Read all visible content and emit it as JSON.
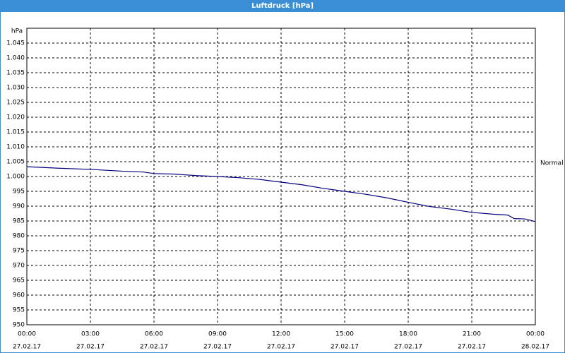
{
  "window_title": "Luftdruck [hPa]",
  "chart_data": {
    "type": "line",
    "y_unit_label": "hPa",
    "right_label": "Normal",
    "x": [
      0,
      1.5,
      3,
      4.5,
      5.5,
      6,
      7,
      8,
      9,
      10,
      11,
      12,
      13,
      14,
      15,
      16,
      17,
      18,
      19,
      20,
      21,
      22,
      22.7,
      23,
      23.5,
      24
    ],
    "series": [
      {
        "name": "Luftdruck",
        "color": "#00007f",
        "values": [
          1003.3,
          1002.8,
          1002.4,
          1001.8,
          1001.5,
          1001.0,
          1000.8,
          1000.3,
          1000.0,
          999.6,
          999.0,
          998.1,
          997.2,
          996.0,
          995.0,
          994.0,
          992.8,
          991.3,
          989.9,
          989.0,
          987.9,
          987.3,
          987.0,
          985.8,
          985.7,
          984.8
        ]
      }
    ],
    "xlim": [
      0,
      24
    ],
    "xticks": [
      {
        "value": 0,
        "label": "00:00"
      },
      {
        "value": 3,
        "label": "03:00"
      },
      {
        "value": 6,
        "label": "06:00"
      },
      {
        "value": 9,
        "label": "09:00"
      },
      {
        "value": 12,
        "label": "12:00"
      },
      {
        "value": 15,
        "label": "15:00"
      },
      {
        "value": 18,
        "label": "18:00"
      },
      {
        "value": 21,
        "label": "21:00"
      },
      {
        "value": 24,
        "label": "00:00"
      }
    ],
    "xtick_dates": [
      "27.02.17",
      "27.02.17",
      "27.02.17",
      "27.02.17",
      "27.02.17",
      "27.02.17",
      "27.02.17",
      "27.02.17",
      "28.02.17"
    ],
    "ylim": [
      950,
      1050
    ],
    "yticks": [
      950,
      955,
      960,
      965,
      970,
      975,
      980,
      985,
      990,
      995,
      {
        "value": 1000,
        "label": "1.000"
      },
      {
        "value": 1005,
        "label": "1.005"
      },
      {
        "value": 1010,
        "label": "1.010"
      },
      {
        "value": 1015,
        "label": "1.015"
      },
      {
        "value": 1020,
        "label": "1.020"
      },
      {
        "value": 1025,
        "label": "1.025"
      },
      {
        "value": 1030,
        "label": "1.030"
      },
      {
        "value": 1035,
        "label": "1.035"
      },
      {
        "value": 1040,
        "label": "1.040"
      },
      {
        "value": 1045,
        "label": "1.045"
      }
    ],
    "grid": true
  }
}
